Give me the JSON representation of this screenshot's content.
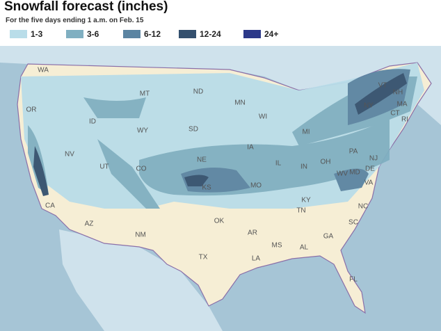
{
  "header": {
    "title": "Snowfall forecast (inches)",
    "subtitle": "For the five days ending 1 a.m. on Feb. 15"
  },
  "legend": [
    {
      "label": "1-3",
      "color": "#b9dde9"
    },
    {
      "label": "3-6",
      "color": "#80afc1"
    },
    {
      "label": "6-12",
      "color": "#5b84a2"
    },
    {
      "label": "12-24",
      "color": "#34506e"
    },
    {
      "label": "24+",
      "color": "#2b3889"
    }
  ],
  "states": [
    "WA",
    "MT",
    "ND",
    "MN",
    "OR",
    "ID",
    "WY",
    "SD",
    "WI",
    "MI",
    "NY",
    "VT",
    "NH",
    "MA",
    "CT",
    "RI",
    "NV",
    "UT",
    "NE",
    "IA",
    "IL",
    "IN",
    "OH",
    "PA",
    "NJ",
    "DE",
    "MD",
    "WV",
    "VA",
    "CA",
    "CO",
    "KS",
    "MO",
    "KY",
    "AZ",
    "NM",
    "OK",
    "AR",
    "TN",
    "NC",
    "SC",
    "MS",
    "AL",
    "GA",
    "TX",
    "LA",
    "FL"
  ]
}
